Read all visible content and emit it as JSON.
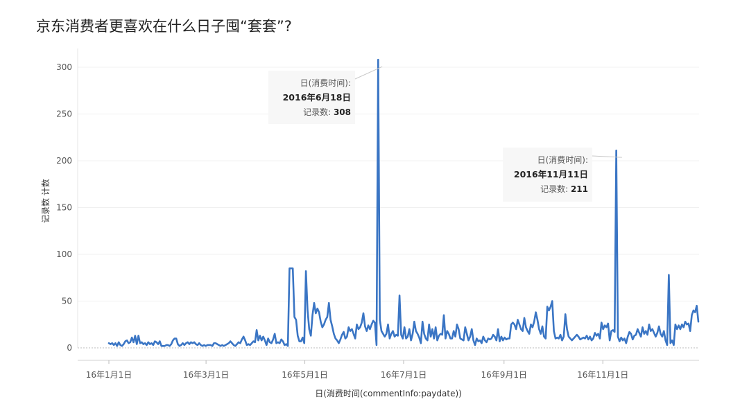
{
  "title": "京东消费者更喜欢在什么日子囤“套套”?",
  "chart_data": {
    "type": "line",
    "title": "京东消费者更喜欢在什么日子囤“套套”?",
    "xlabel": "日(消费时间(commentInfo:paydate))",
    "ylabel": "记录数 计数",
    "ylim": [
      0,
      310
    ],
    "yticks": [
      0,
      50,
      100,
      150,
      200,
      250,
      300
    ],
    "xtick_labels": [
      "16年1月1日",
      "16年3月1日",
      "16年5月1日",
      "16年7月1日",
      "16年9月1日",
      "16年11月1日"
    ],
    "grid": true,
    "line_color": "#3a75c4",
    "x_start": "2016-01-01",
    "x_end": "2016-12-30",
    "series": [
      {
        "values": [
          5,
          4,
          5,
          3,
          5,
          2,
          6,
          3,
          2,
          4,
          7,
          8,
          5,
          6,
          11,
          6,
          13,
          4,
          13,
          5,
          6,
          4,
          5,
          3,
          6,
          4,
          5,
          3,
          7,
          6,
          4,
          7,
          2,
          2,
          2,
          3,
          3,
          2,
          4,
          8,
          10,
          10,
          4,
          2,
          3,
          5,
          3,
          5,
          6,
          4,
          6,
          5,
          6,
          4,
          3,
          5,
          3,
          2,
          3,
          2,
          3,
          3,
          3,
          2,
          5,
          5,
          4,
          3,
          2,
          3,
          2,
          3,
          4,
          5,
          7,
          5,
          3,
          2,
          4,
          6,
          5,
          9,
          12,
          8,
          3,
          4,
          3,
          5,
          7,
          6,
          19,
          8,
          13,
          8,
          12,
          8,
          3,
          10,
          6,
          5,
          9,
          15,
          5,
          6,
          5,
          9,
          7,
          3,
          4,
          2,
          85,
          85,
          85,
          33,
          30,
          13,
          7,
          7,
          11,
          5,
          82,
          40,
          20,
          13,
          35,
          48,
          37,
          42,
          38,
          28,
          22,
          25,
          30,
          33,
          48,
          30,
          23,
          15,
          10,
          8,
          5,
          9,
          14,
          17,
          10,
          12,
          22,
          18,
          20,
          15,
          10,
          25,
          20,
          22,
          27,
          37,
          23,
          18,
          24,
          20,
          25,
          29,
          27,
          3,
          308,
          30,
          18,
          15,
          12,
          15,
          25,
          10,
          15,
          18,
          12,
          14,
          13,
          56,
          14,
          10,
          22,
          10,
          12,
          20,
          8,
          15,
          28,
          18,
          15,
          11,
          5,
          28,
          15,
          10,
          8,
          25,
          12,
          20,
          10,
          22,
          8,
          13,
          15,
          14,
          35,
          10,
          18,
          15,
          10,
          10,
          18,
          12,
          25,
          20,
          10,
          9,
          8,
          22,
          15,
          8,
          12,
          20,
          8,
          3,
          10,
          7,
          8,
          5,
          12,
          8,
          6,
          10,
          9,
          10,
          14,
          12,
          8,
          20,
          7,
          12,
          8,
          11,
          9,
          10,
          10,
          25,
          27,
          25,
          20,
          30,
          25,
          20,
          18,
          32,
          22,
          18,
          15,
          25,
          22,
          28,
          38,
          30,
          20,
          15,
          23,
          12,
          10,
          44,
          40,
          44,
          50,
          18,
          10,
          11,
          10,
          14,
          8,
          12,
          36,
          20,
          12,
          10,
          8,
          10,
          12,
          14,
          12,
          9,
          10,
          11,
          10,
          13,
          9,
          12,
          8,
          10,
          16,
          13,
          15,
          10,
          27,
          20,
          24,
          22,
          26,
          8,
          18,
          19,
          17,
          211,
          12,
          7,
          11,
          8,
          10,
          5,
          12,
          17,
          15,
          9,
          13,
          14,
          20,
          16,
          12,
          22,
          15,
          18,
          14,
          25,
          18,
          20,
          16,
          12,
          16,
          23,
          15,
          12,
          18,
          8,
          3,
          78,
          5,
          8,
          3,
          25,
          20,
          24,
          20,
          25,
          22,
          28,
          25,
          26,
          18,
          35,
          40,
          38,
          45,
          28
        ]
      }
    ],
    "annotations": [
      {
        "label": "日(消费时间):",
        "date_text": "2016年6月18日",
        "count_label": "记录数:",
        "count_value": "308",
        "x_date": "2016-06-18",
        "y": 308
      },
      {
        "label": "日(消费时间):",
        "date_text": "2016年11月11日",
        "count_label": "记录数:",
        "count_value": "211",
        "x_date": "2016-11-11",
        "y": 211
      }
    ]
  }
}
